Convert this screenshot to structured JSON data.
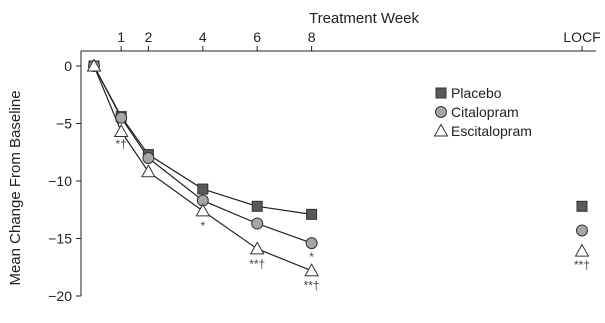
{
  "chart_data": {
    "type": "line",
    "title": "",
    "xlabel": "Treatment Week",
    "ylabel": "Mean Change From Baseline",
    "x": [
      0,
      1,
      2,
      4,
      6,
      8
    ],
    "x_tick_labels": [
      "1",
      "2",
      "4",
      "6",
      "8",
      "LOCF"
    ],
    "y_ticks": [
      0,
      -5,
      -10,
      -15,
      -20
    ],
    "y_tick_labels": [
      "0",
      "−5",
      "−10",
      "−15",
      "−20"
    ],
    "ylim": [
      -20,
      0
    ],
    "grid": false,
    "legend_position": "right",
    "series": [
      {
        "name": "Placebo",
        "marker": "square",
        "color": "#595959",
        "values": [
          0,
          -4.4,
          -7.7,
          -10.7,
          -12.2,
          -12.9
        ],
        "locf": -12.2
      },
      {
        "name": "Citalopram",
        "marker": "circle",
        "color": "#a6a6a6",
        "values": [
          0,
          -4.5,
          -8.0,
          -11.7,
          -13.7,
          -15.4
        ],
        "locf": -14.3
      },
      {
        "name": "Escitalopram",
        "marker": "triangle",
        "color": "#ffffff",
        "values": [
          0,
          -5.7,
          -9.2,
          -12.6,
          -15.9,
          -17.8
        ],
        "locf": -16.1
      }
    ],
    "annotations": [
      {
        "text": "*†",
        "x": 1,
        "y": -6.8
      },
      {
        "text": "*",
        "x": 4,
        "y": -13.9
      },
      {
        "text": "**†",
        "x": 6,
        "y": -17.2
      },
      {
        "text": "*",
        "x": 8,
        "y": -16.6
      },
      {
        "text": "**†",
        "x": 8,
        "y": -19.1
      },
      {
        "text": "**†",
        "x": "LOCF",
        "y": -17.3
      }
    ]
  }
}
